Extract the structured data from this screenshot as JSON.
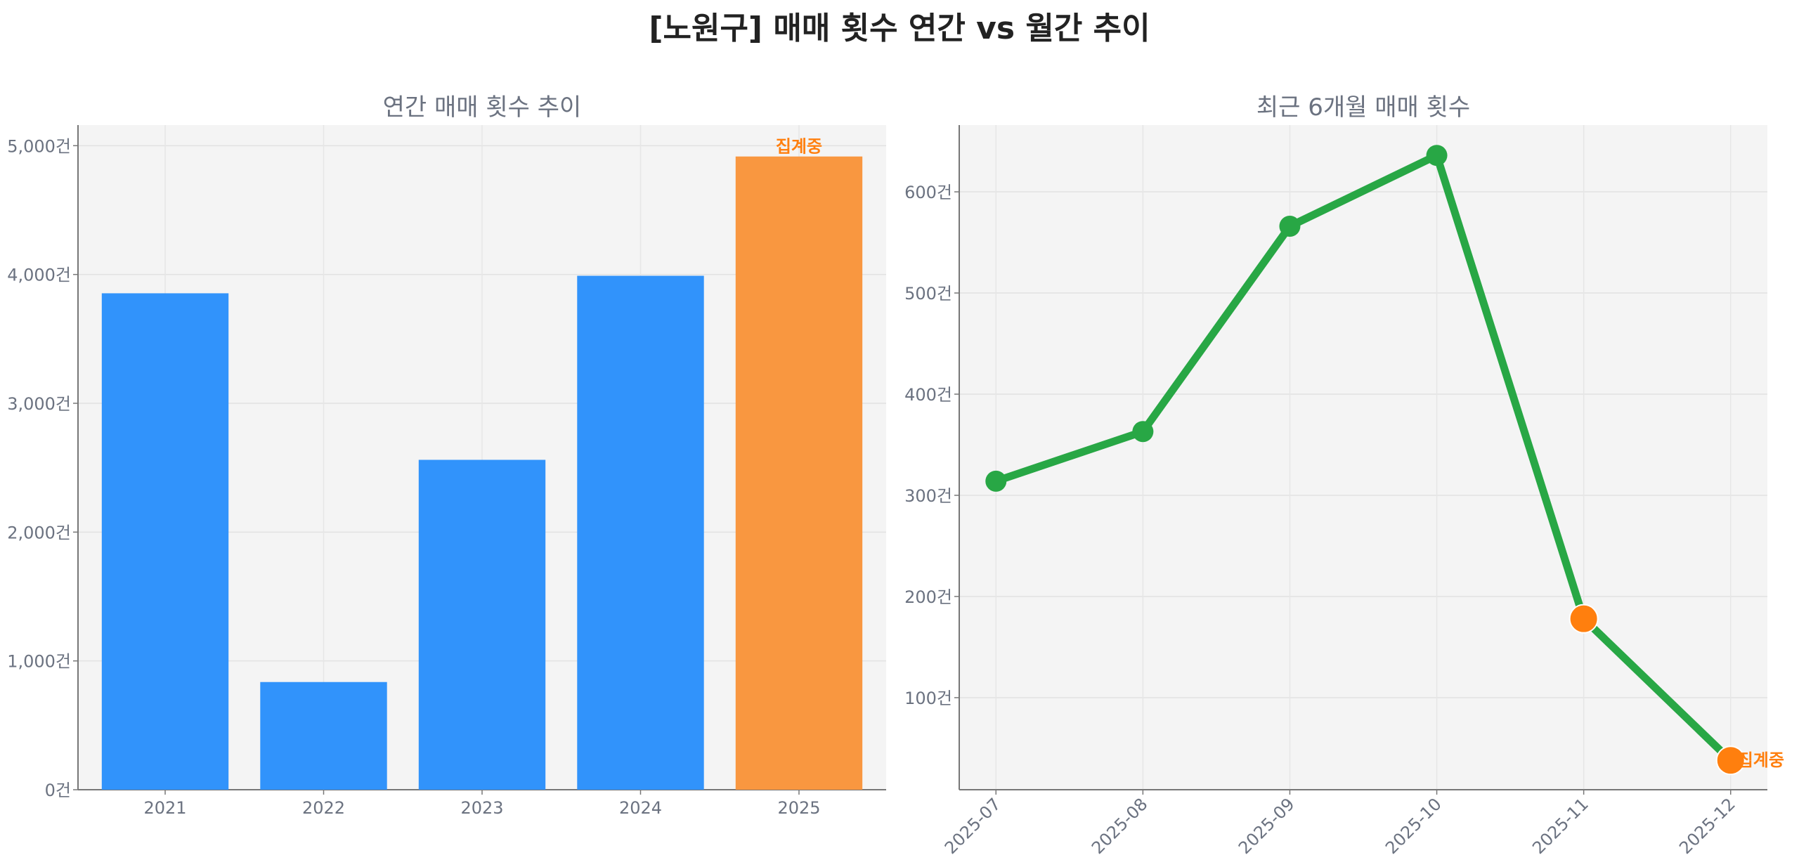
{
  "title": "[노원구] 매매 횟수 연간 vs 월간 추이",
  "chart_data": [
    {
      "type": "bar",
      "title": "연간 매매 횟수 추이",
      "categories": [
        "2021",
        "2022",
        "2023",
        "2024",
        "2025"
      ],
      "values": [
        3854,
        836,
        2561,
        3990,
        4916
      ],
      "colors": [
        "#3193fb",
        "#3193fb",
        "#3193fb",
        "#3193fb",
        "#f99740"
      ],
      "ylim": [
        0,
        5160
      ],
      "yticks": [
        0,
        1000,
        2000,
        3000,
        4000,
        5000
      ],
      "ytick_labels": [
        "0건",
        "1,000건",
        "2,000건",
        "3,000건",
        "4,000건",
        "5,000건"
      ],
      "annotation": {
        "category": "2025",
        "text": "집계중"
      },
      "grid": true
    },
    {
      "type": "line",
      "title": "최근 6개월 매매 횟수",
      "categories": [
        "2025-07",
        "2025-08",
        "2025-09",
        "2025-10",
        "2025-11",
        "2025-12"
      ],
      "values": [
        314,
        363,
        566,
        636,
        178,
        38
      ],
      "line_color": "#28a745",
      "highlight_color": "#ff7f0e",
      "highlighted": [
        "2025-11",
        "2025-12"
      ],
      "ylim": [
        9,
        666
      ],
      "yticks": [
        100,
        200,
        300,
        400,
        500,
        600
      ],
      "ytick_labels": [
        "100건",
        "200건",
        "300건",
        "400건",
        "500건",
        "600건"
      ],
      "annotation": {
        "category": "2025-12",
        "text": "집계중"
      },
      "grid": true
    }
  ]
}
